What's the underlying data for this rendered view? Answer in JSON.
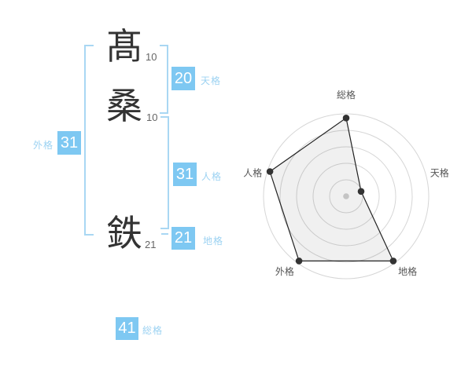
{
  "colors": {
    "box": "#7ec8f2",
    "label": "#9cd2f2",
    "bracket": "#a9d7f3",
    "kanji": "#333333",
    "stroke-gray": "#666666",
    "radar-ring": "#d6d6d6",
    "radar-text": "#555555"
  },
  "name_chart": {
    "characters": [
      {
        "char": "髙",
        "strokes": "10"
      },
      {
        "char": "桑",
        "strokes": "10"
      },
      {
        "char": "鉄",
        "strokes": "21"
      }
    ],
    "kaku": [
      {
        "id": "tenkaku",
        "label": "天格",
        "value": "20"
      },
      {
        "id": "jinkaku",
        "label": "人格",
        "value": "31"
      },
      {
        "id": "chikaku",
        "label": "地格",
        "value": "21"
      },
      {
        "id": "gaikaku",
        "label": "外格",
        "value": "31"
      },
      {
        "id": "soukaku",
        "label": "総格",
        "value": "41"
      }
    ]
  },
  "chart_data": {
    "type": "radar",
    "axes": [
      "総格",
      "天格",
      "地格",
      "外格",
      "人格"
    ],
    "values": [
      95,
      19,
      97,
      97,
      97
    ],
    "max": 100,
    "rings": 5,
    "start": "top",
    "direction": "clockwise",
    "grid": "concentric-circles",
    "legend_position": "none"
  }
}
